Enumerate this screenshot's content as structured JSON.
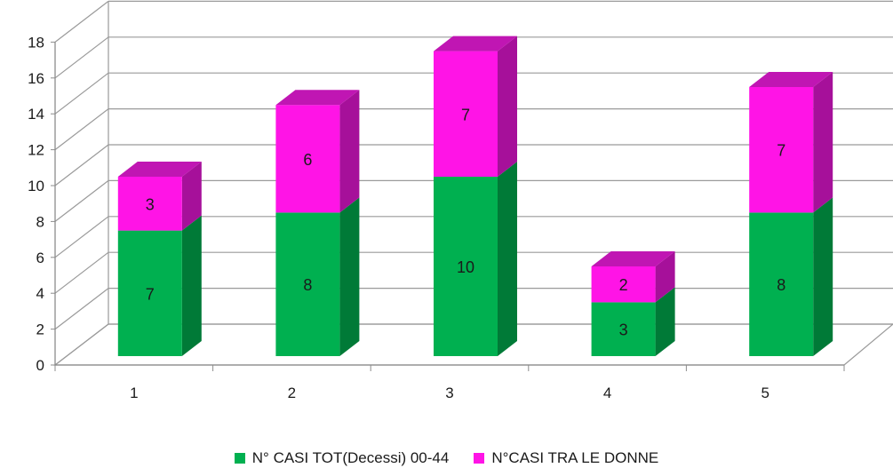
{
  "chart_data": {
    "type": "bar",
    "stacked": true,
    "three_d": true,
    "categories": [
      "1",
      "2",
      "3",
      "4",
      "5"
    ],
    "series": [
      {
        "name": "N° CASI TOT(Decessi) 00-44",
        "values": [
          7,
          8,
          10,
          3,
          8
        ],
        "color": "#00b050",
        "side_color": "#007a37",
        "top_color": "#00a048"
      },
      {
        "name": "N°CASI TRA LE DONNE",
        "values": [
          3,
          6,
          7,
          2,
          7
        ],
        "color": "#ff14e6",
        "side_color": "#a6109a",
        "top_color": "#c016b3"
      }
    ],
    "ylim": [
      0,
      18
    ],
    "yticks": [
      0,
      2,
      4,
      6,
      8,
      10,
      12,
      14,
      16,
      18
    ],
    "grid": true,
    "legend_position": "bottom"
  }
}
